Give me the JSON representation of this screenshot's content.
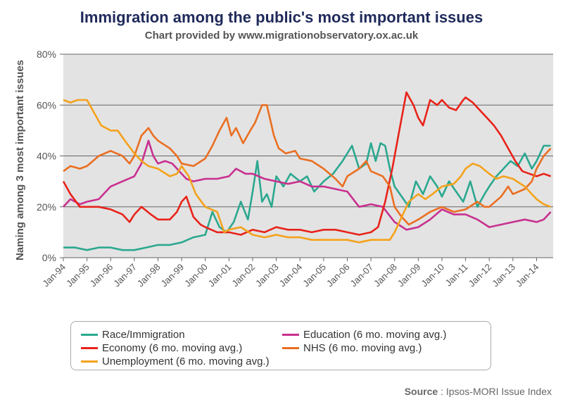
{
  "title": "Immigration among the public's most important issues",
  "subtitle": "Chart provided by www.migrationobservatory.ox.ac.uk",
  "source_label": "Source",
  "source_text": " : Ipsos-MORI Issue Index",
  "chart_data": {
    "type": "line",
    "ylabel": "Naming among 3 most important issues",
    "ylim": [
      0,
      80
    ],
    "yticks": [
      "0%",
      "20%",
      "40%",
      "60%",
      "80%"
    ],
    "xticks": [
      "Jan-94",
      "Jan-95",
      "Jan-96",
      "Jan-97",
      "Jan-98",
      "Jan-99",
      "Jan-00",
      "Jan-01",
      "Jan-02",
      "Jan-03",
      "Jan-04",
      "Jan-05",
      "Jan-06",
      "Jan-07",
      "Jan-08",
      "Jan-09",
      "Jan-10",
      "Jan-11",
      "Jan-12",
      "Jan-13",
      "Jan-14"
    ],
    "grid": true,
    "legend_position": "bottom",
    "series": [
      {
        "name": "Race/Immigration",
        "color": "#2ba88f",
        "points": [
          [
            1994.0,
            4
          ],
          [
            1994.5,
            4
          ],
          [
            1995.0,
            3
          ],
          [
            1995.5,
            4
          ],
          [
            1996.0,
            4
          ],
          [
            1996.5,
            3
          ],
          [
            1997.0,
            3
          ],
          [
            1997.5,
            4
          ],
          [
            1998.0,
            5
          ],
          [
            1998.5,
            5
          ],
          [
            1999.0,
            6
          ],
          [
            1999.5,
            8
          ],
          [
            2000.0,
            9
          ],
          [
            2000.3,
            18
          ],
          [
            2000.6,
            12
          ],
          [
            2000.9,
            10
          ],
          [
            2001.2,
            14
          ],
          [
            2001.5,
            22
          ],
          [
            2001.8,
            15
          ],
          [
            2002.0,
            26
          ],
          [
            2002.2,
            38
          ],
          [
            2002.4,
            22
          ],
          [
            2002.6,
            25
          ],
          [
            2002.8,
            20
          ],
          [
            2003.0,
            32
          ],
          [
            2003.3,
            28
          ],
          [
            2003.6,
            33
          ],
          [
            2004.0,
            30
          ],
          [
            2004.3,
            32
          ],
          [
            2004.6,
            26
          ],
          [
            2005.0,
            30
          ],
          [
            2005.4,
            33
          ],
          [
            2005.8,
            38
          ],
          [
            2006.2,
            44
          ],
          [
            2006.5,
            35
          ],
          [
            2006.8,
            37
          ],
          [
            2007.0,
            45
          ],
          [
            2007.2,
            38
          ],
          [
            2007.4,
            45
          ],
          [
            2007.6,
            44
          ],
          [
            2007.8,
            35
          ],
          [
            2008.0,
            28
          ],
          [
            2008.3,
            24
          ],
          [
            2008.6,
            20
          ],
          [
            2008.9,
            30
          ],
          [
            2009.2,
            25
          ],
          [
            2009.5,
            32
          ],
          [
            2009.8,
            28
          ],
          [
            2010.0,
            24
          ],
          [
            2010.3,
            30
          ],
          [
            2010.6,
            26
          ],
          [
            2010.9,
            22
          ],
          [
            2011.2,
            30
          ],
          [
            2011.5,
            20
          ],
          [
            2011.8,
            25
          ],
          [
            2012.0,
            28
          ],
          [
            2012.3,
            32
          ],
          [
            2012.6,
            35
          ],
          [
            2012.9,
            38
          ],
          [
            2013.2,
            36
          ],
          [
            2013.5,
            41
          ],
          [
            2013.8,
            35
          ],
          [
            2014.0,
            38
          ],
          [
            2014.3,
            44
          ],
          [
            2014.6,
            44
          ]
        ]
      },
      {
        "name": "Education (6 mo. moving avg.)",
        "color": "#c8308f",
        "points": [
          [
            1994.0,
            20
          ],
          [
            1994.3,
            23
          ],
          [
            1994.7,
            21
          ],
          [
            1995.0,
            22
          ],
          [
            1995.5,
            23
          ],
          [
            1996.0,
            28
          ],
          [
            1996.5,
            30
          ],
          [
            1997.0,
            32
          ],
          [
            1997.3,
            37
          ],
          [
            1997.6,
            46
          ],
          [
            1997.8,
            40
          ],
          [
            1998.0,
            37
          ],
          [
            1998.3,
            38
          ],
          [
            1998.6,
            37
          ],
          [
            1998.9,
            34
          ],
          [
            1999.2,
            31
          ],
          [
            1999.5,
            30
          ],
          [
            2000.0,
            31
          ],
          [
            2000.5,
            31
          ],
          [
            2001.0,
            32
          ],
          [
            2001.3,
            35
          ],
          [
            2001.7,
            33
          ],
          [
            2002.0,
            33
          ],
          [
            2002.5,
            31
          ],
          [
            2003.0,
            30
          ],
          [
            2003.5,
            29
          ],
          [
            2004.0,
            30
          ],
          [
            2004.5,
            28
          ],
          [
            2005.0,
            28
          ],
          [
            2005.5,
            27
          ],
          [
            2006.0,
            26
          ],
          [
            2006.5,
            20
          ],
          [
            2007.0,
            21
          ],
          [
            2007.5,
            20
          ],
          [
            2008.0,
            14
          ],
          [
            2008.5,
            11
          ],
          [
            2009.0,
            12
          ],
          [
            2009.5,
            15
          ],
          [
            2010.0,
            19
          ],
          [
            2010.5,
            17
          ],
          [
            2011.0,
            17
          ],
          [
            2011.5,
            15
          ],
          [
            2012.0,
            12
          ],
          [
            2012.5,
            13
          ],
          [
            2013.0,
            14
          ],
          [
            2013.5,
            15
          ],
          [
            2014.0,
            14
          ],
          [
            2014.3,
            15
          ],
          [
            2014.6,
            18
          ]
        ]
      },
      {
        "name": "Economy (6 mo. moving avg.)",
        "color": "#e8231a",
        "points": [
          [
            1994.0,
            30
          ],
          [
            1994.3,
            25
          ],
          [
            1994.7,
            20
          ],
          [
            1995.0,
            20
          ],
          [
            1995.5,
            20
          ],
          [
            1996.0,
            19
          ],
          [
            1996.5,
            17
          ],
          [
            1996.8,
            14
          ],
          [
            1997.0,
            17
          ],
          [
            1997.3,
            20
          ],
          [
            1997.7,
            17
          ],
          [
            1998.0,
            15
          ],
          [
            1998.5,
            15
          ],
          [
            1998.8,
            18
          ],
          [
            1999.0,
            22
          ],
          [
            1999.2,
            24
          ],
          [
            1999.5,
            16
          ],
          [
            1999.8,
            13
          ],
          [
            2000.0,
            12
          ],
          [
            2000.5,
            10
          ],
          [
            2001.0,
            10
          ],
          [
            2001.5,
            9
          ],
          [
            2002.0,
            11
          ],
          [
            2002.5,
            10
          ],
          [
            2003.0,
            12
          ],
          [
            2003.5,
            11
          ],
          [
            2004.0,
            11
          ],
          [
            2004.5,
            10
          ],
          [
            2005.0,
            11
          ],
          [
            2005.5,
            11
          ],
          [
            2006.0,
            10
          ],
          [
            2006.5,
            9
          ],
          [
            2007.0,
            10
          ],
          [
            2007.3,
            12
          ],
          [
            2007.6,
            22
          ],
          [
            2007.9,
            35
          ],
          [
            2008.2,
            50
          ],
          [
            2008.5,
            65
          ],
          [
            2008.8,
            60
          ],
          [
            2009.0,
            55
          ],
          [
            2009.2,
            52
          ],
          [
            2009.5,
            62
          ],
          [
            2009.8,
            60
          ],
          [
            2010.0,
            62
          ],
          [
            2010.3,
            59
          ],
          [
            2010.6,
            58
          ],
          [
            2010.9,
            62
          ],
          [
            2011.0,
            63
          ],
          [
            2011.3,
            61
          ],
          [
            2011.6,
            58
          ],
          [
            2011.9,
            55
          ],
          [
            2012.2,
            52
          ],
          [
            2012.5,
            48
          ],
          [
            2012.8,
            43
          ],
          [
            2013.1,
            38
          ],
          [
            2013.4,
            34
          ],
          [
            2013.7,
            33
          ],
          [
            2014.0,
            32
          ],
          [
            2014.3,
            33
          ],
          [
            2014.6,
            32
          ]
        ]
      },
      {
        "name": "NHS (6 mo. moving avg.)",
        "color": "#ea6f22",
        "points": [
          [
            1994.0,
            34
          ],
          [
            1994.3,
            36
          ],
          [
            1994.7,
            35
          ],
          [
            1995.0,
            36
          ],
          [
            1995.5,
            40
          ],
          [
            1996.0,
            42
          ],
          [
            1996.5,
            40
          ],
          [
            1996.8,
            37
          ],
          [
            1997.0,
            40
          ],
          [
            1997.3,
            48
          ],
          [
            1997.6,
            51
          ],
          [
            1997.8,
            48
          ],
          [
            1998.0,
            46
          ],
          [
            1998.5,
            43
          ],
          [
            1998.8,
            40
          ],
          [
            1999.0,
            37
          ],
          [
            1999.5,
            36
          ],
          [
            2000.0,
            39
          ],
          [
            2000.3,
            44
          ],
          [
            2000.6,
            50
          ],
          [
            2000.9,
            55
          ],
          [
            2001.1,
            48
          ],
          [
            2001.3,
            51
          ],
          [
            2001.6,
            45
          ],
          [
            2001.9,
            50
          ],
          [
            2002.1,
            53
          ],
          [
            2002.4,
            60
          ],
          [
            2002.6,
            60
          ],
          [
            2002.9,
            48
          ],
          [
            2003.1,
            43
          ],
          [
            2003.4,
            41
          ],
          [
            2003.8,
            42
          ],
          [
            2004.0,
            39
          ],
          [
            2004.5,
            38
          ],
          [
            2005.0,
            35
          ],
          [
            2005.5,
            31
          ],
          [
            2005.8,
            28
          ],
          [
            2006.0,
            32
          ],
          [
            2006.5,
            35
          ],
          [
            2006.8,
            38
          ],
          [
            2007.0,
            34
          ],
          [
            2007.5,
            32
          ],
          [
            2007.8,
            28
          ],
          [
            2008.0,
            20
          ],
          [
            2008.3,
            16
          ],
          [
            2008.6,
            13
          ],
          [
            2009.0,
            15
          ],
          [
            2009.5,
            18
          ],
          [
            2010.0,
            20
          ],
          [
            2010.5,
            18
          ],
          [
            2011.0,
            19
          ],
          [
            2011.5,
            22
          ],
          [
            2011.8,
            20
          ],
          [
            2012.0,
            20
          ],
          [
            2012.5,
            24
          ],
          [
            2012.8,
            28
          ],
          [
            2013.0,
            25
          ],
          [
            2013.5,
            27
          ],
          [
            2013.8,
            30
          ],
          [
            2014.0,
            35
          ],
          [
            2014.3,
            40
          ],
          [
            2014.6,
            43
          ]
        ]
      },
      {
        "name": "Unemployment (6 mo. moving avg.)",
        "color": "#f4a21c",
        "points": [
          [
            1994.0,
            62
          ],
          [
            1994.3,
            61
          ],
          [
            1994.6,
            62
          ],
          [
            1995.0,
            62
          ],
          [
            1995.3,
            57
          ],
          [
            1995.6,
            52
          ],
          [
            1996.0,
            50
          ],
          [
            1996.3,
            50
          ],
          [
            1996.6,
            46
          ],
          [
            1997.0,
            41
          ],
          [
            1997.3,
            38
          ],
          [
            1997.6,
            36
          ],
          [
            1998.0,
            35
          ],
          [
            1998.5,
            32
          ],
          [
            1998.8,
            33
          ],
          [
            1999.0,
            36
          ],
          [
            1999.3,
            32
          ],
          [
            1999.6,
            25
          ],
          [
            2000.0,
            20
          ],
          [
            2000.5,
            18
          ],
          [
            2000.8,
            10
          ],
          [
            2001.0,
            11
          ],
          [
            2001.5,
            12
          ],
          [
            2002.0,
            9
          ],
          [
            2002.5,
            8
          ],
          [
            2003.0,
            9
          ],
          [
            2003.5,
            8
          ],
          [
            2004.0,
            8
          ],
          [
            2004.5,
            7
          ],
          [
            2005.0,
            7
          ],
          [
            2005.5,
            7
          ],
          [
            2006.0,
            7
          ],
          [
            2006.5,
            6
          ],
          [
            2007.0,
            7
          ],
          [
            2007.5,
            7
          ],
          [
            2007.8,
            7
          ],
          [
            2008.0,
            10
          ],
          [
            2008.3,
            16
          ],
          [
            2008.6,
            22
          ],
          [
            2009.0,
            25
          ],
          [
            2009.3,
            23
          ],
          [
            2009.6,
            25
          ],
          [
            2010.0,
            28
          ],
          [
            2010.5,
            29
          ],
          [
            2010.8,
            32
          ],
          [
            2011.0,
            35
          ],
          [
            2011.3,
            37
          ],
          [
            2011.6,
            36
          ],
          [
            2012.0,
            33
          ],
          [
            2012.3,
            31
          ],
          [
            2012.6,
            32
          ],
          [
            2013.0,
            31
          ],
          [
            2013.5,
            28
          ],
          [
            2013.8,
            25
          ],
          [
            2014.0,
            23
          ],
          [
            2014.3,
            21
          ],
          [
            2014.6,
            20
          ]
        ]
      }
    ]
  },
  "legend": [
    {
      "label": "Race/Immigration",
      "color": "#2ba88f"
    },
    {
      "label": "Education (6 mo. moving avg.)",
      "color": "#c8308f"
    },
    {
      "label": "Economy (6 mo. moving avg.)",
      "color": "#e8231a"
    },
    {
      "label": "NHS (6 mo. moving avg.)",
      "color": "#ea6f22"
    },
    {
      "label": "Unemployment (6 mo. moving avg.)",
      "color": "#f4a21c"
    }
  ]
}
